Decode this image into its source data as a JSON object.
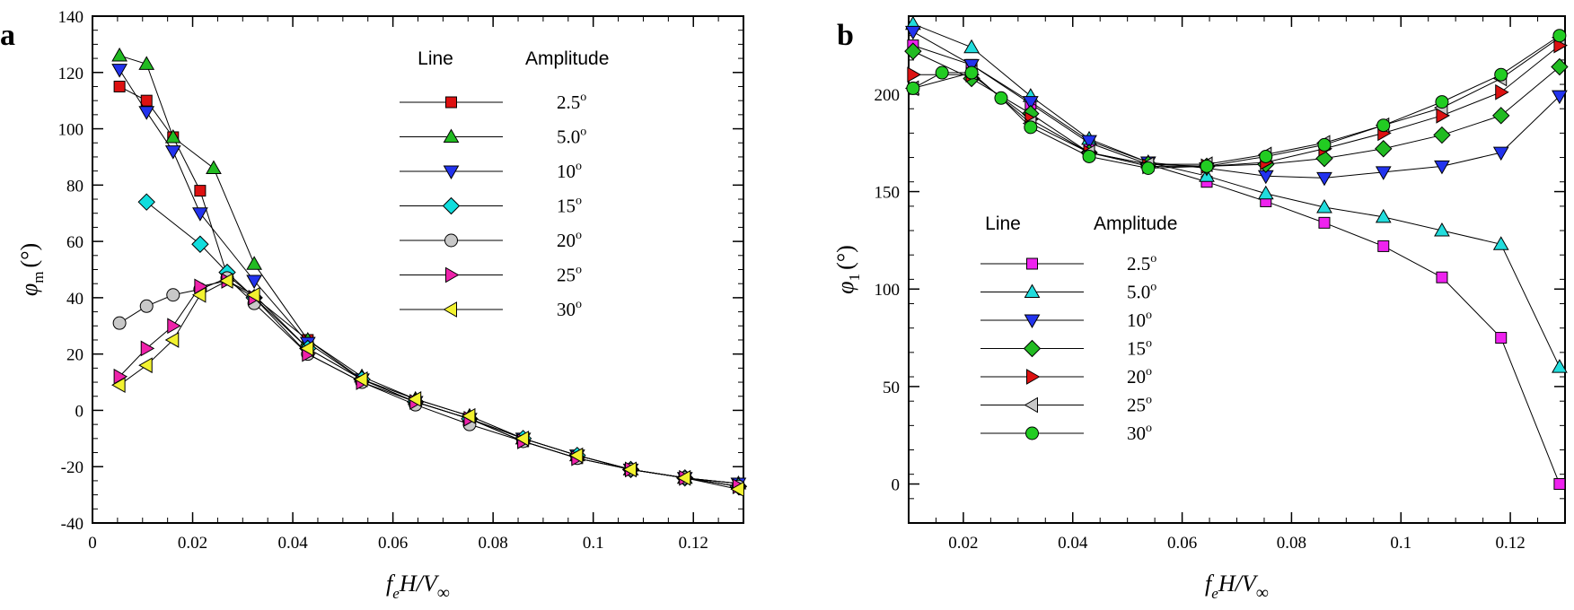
{
  "chart_data": [
    {
      "panel": "a",
      "type": "line",
      "xlabel": "f",
      "xlabel_sub": "e",
      "xlabel_rest": "H/V",
      "xlabel_rest_sub": "∞",
      "ylabel": "φ",
      "ylabel_sub": "m",
      "ylabel_unit": "(°)",
      "xlim": [
        0,
        0.13
      ],
      "ylim": [
        -40,
        140
      ],
      "x_ticks": [
        0,
        0.02,
        0.04,
        0.06,
        0.08,
        0.1,
        0.12
      ],
      "x_tick_labels": [
        "0",
        "0.02",
        "0.04",
        "0.06",
        "0.08",
        "0.1",
        "0.12"
      ],
      "y_ticks": [
        -40,
        -20,
        0,
        20,
        40,
        60,
        80,
        100,
        120,
        140
      ],
      "y_tick_labels": [
        "-40",
        "-20",
        "0",
        "20",
        "40",
        "60",
        "80",
        "100",
        "120",
        "140"
      ],
      "legend_headers": [
        "Line",
        "Amplitude"
      ],
      "series": [
        {
          "name": "2.5",
          "marker": "square",
          "color": "#dd1111",
          "x": [
            0.0054,
            0.0108,
            0.0161,
            0.0215,
            0.0269,
            0.043,
            0.0538,
            0.0645,
            0.0753,
            0.086,
            0.0968,
            0.1075,
            0.1183,
            0.129
          ],
          "y": [
            115,
            110,
            97,
            78,
            48,
            25,
            11,
            3,
            -3,
            -11,
            -17,
            -21,
            -24,
            -26
          ]
        },
        {
          "name": "5.0",
          "marker": "triangle-up",
          "color": "#22bb22",
          "x": [
            0.0054,
            0.0108,
            0.0161,
            0.0242,
            0.0323,
            0.043,
            0.0538,
            0.0645,
            0.0753,
            0.086,
            0.0968,
            0.1075,
            0.1183,
            0.129
          ],
          "y": [
            126,
            123,
            97,
            86,
            52,
            25,
            12,
            4,
            -2,
            -10,
            -16,
            -21,
            -24,
            -26
          ]
        },
        {
          "name": "10",
          "marker": "triangle-down",
          "color": "#2233ee",
          "x": [
            0.0054,
            0.0108,
            0.0161,
            0.0215,
            0.0323,
            0.043,
            0.0538,
            0.0645,
            0.0753,
            0.086,
            0.0968,
            0.1075,
            0.1183,
            0.129
          ],
          "y": [
            121,
            106,
            92,
            70,
            46,
            24,
            11,
            3,
            -3,
            -10,
            -16,
            -21,
            -24,
            -26
          ]
        },
        {
          "name": "15",
          "marker": "diamond",
          "color": "#11dddd",
          "x": [
            0.0108,
            0.0215,
            0.0269,
            0.0323,
            0.043,
            0.0538,
            0.0645,
            0.0753,
            0.086,
            0.0968,
            0.1075,
            0.1183,
            0.129
          ],
          "y": [
            74,
            59,
            49,
            40,
            22,
            11,
            3,
            -3,
            -10,
            -16,
            -21,
            -24,
            -27
          ]
        },
        {
          "name": "20",
          "marker": "circle",
          "color": "#c8c8c8",
          "x": [
            0.0054,
            0.0108,
            0.0161,
            0.0215,
            0.0269,
            0.0323,
            0.043,
            0.0538,
            0.0645,
            0.0753,
            0.086,
            0.0968,
            0.1075,
            0.1183,
            0.129
          ],
          "y": [
            31,
            37,
            41,
            43,
            47,
            38,
            20,
            10,
            2,
            -5,
            -11,
            -17,
            -21,
            -24,
            -27
          ]
        },
        {
          "name": "25",
          "marker": "triangle-right",
          "color": "#ee22aa",
          "x": [
            0.0054,
            0.0108,
            0.0161,
            0.0215,
            0.0269,
            0.0323,
            0.043,
            0.0538,
            0.0645,
            0.0753,
            0.086,
            0.0968,
            0.1075,
            0.1183,
            0.129
          ],
          "y": [
            12,
            22,
            30,
            44,
            46,
            40,
            20,
            10,
            3,
            -3,
            -11,
            -17,
            -21,
            -24,
            -27
          ]
        },
        {
          "name": "30",
          "marker": "triangle-left",
          "color": "#f2f230",
          "x": [
            0.0054,
            0.0108,
            0.0161,
            0.0215,
            0.0269,
            0.0323,
            0.043,
            0.0538,
            0.0645,
            0.0753,
            0.086,
            0.0968,
            0.1075,
            0.1183,
            0.129
          ],
          "y": [
            9,
            16,
            25,
            41,
            46,
            41,
            22,
            11,
            4,
            -2,
            -10,
            -16,
            -21,
            -24,
            -28
          ]
        }
      ]
    },
    {
      "panel": "b",
      "type": "line",
      "xlabel": "f",
      "xlabel_sub": "e",
      "xlabel_rest": "H/V",
      "xlabel_rest_sub": "∞",
      "ylabel": "φ",
      "ylabel_sub": "1",
      "ylabel_unit": "(°)",
      "xlim": [
        0.01,
        0.13
      ],
      "ylim": [
        -20,
        240
      ],
      "x_ticks": [
        0.02,
        0.04,
        0.06,
        0.08,
        0.1,
        0.12
      ],
      "x_tick_labels": [
        "0.02",
        "0.04",
        "0.06",
        "0.08",
        "0.1",
        "0.12"
      ],
      "y_ticks": [
        0,
        50,
        100,
        150,
        200
      ],
      "y_tick_labels": [
        "0",
        "50",
        "100",
        "150",
        "200"
      ],
      "legend_headers": [
        "Line",
        "Amplitude"
      ],
      "series": [
        {
          "name": "2.5",
          "marker": "square",
          "color": "#ee22ee",
          "x": [
            0.0108,
            0.0215,
            0.0323,
            0.043,
            0.0538,
            0.0645,
            0.0753,
            0.086,
            0.0968,
            0.1075,
            0.1183,
            0.129
          ],
          "y": [
            225,
            215,
            195,
            175,
            164,
            155,
            145,
            134,
            122,
            106,
            75,
            0
          ]
        },
        {
          "name": "5.0",
          "marker": "triangle-up",
          "color": "#22dddd",
          "x": [
            0.0108,
            0.0215,
            0.0323,
            0.043,
            0.0538,
            0.0645,
            0.0753,
            0.086,
            0.0968,
            0.1075,
            0.1183,
            0.129
          ],
          "y": [
            236,
            224,
            199,
            177,
            165,
            158,
            149,
            142,
            137,
            130,
            123,
            60
          ]
        },
        {
          "name": "10",
          "marker": "triangle-down",
          "color": "#2233ee",
          "x": [
            0.0108,
            0.0215,
            0.0323,
            0.043,
            0.0538,
            0.0645,
            0.0753,
            0.086,
            0.0968,
            0.1075,
            0.1183,
            0.129
          ],
          "y": [
            232,
            215,
            196,
            176,
            165,
            162,
            158,
            157,
            160,
            163,
            170,
            199
          ]
        },
        {
          "name": "15",
          "marker": "diamond",
          "color": "#22bb22",
          "x": [
            0.0108,
            0.0215,
            0.0323,
            0.043,
            0.0538,
            0.0645,
            0.0753,
            0.086,
            0.0968,
            0.1075,
            0.1183,
            0.129
          ],
          "y": [
            222,
            208,
            190,
            170,
            164,
            163,
            164,
            167,
            172,
            179,
            189,
            214
          ]
        },
        {
          "name": "20",
          "marker": "triangle-right",
          "color": "#dd1111",
          "x": [
            0.0108,
            0.0215,
            0.0323,
            0.043,
            0.0538,
            0.0645,
            0.0753,
            0.086,
            0.0968,
            0.1075,
            0.1183,
            0.129
          ],
          "y": [
            210,
            210,
            187,
            170,
            163,
            163,
            165,
            172,
            180,
            189,
            201,
            225
          ]
        },
        {
          "name": "25",
          "marker": "triangle-left",
          "color": "#c8c8c8",
          "x": [
            0.0108,
            0.0215,
            0.0323,
            0.043,
            0.0538,
            0.0645,
            0.0753,
            0.086,
            0.0968,
            0.1075,
            0.1183,
            0.129
          ],
          "y": [
            203,
            211,
            185,
            170,
            164,
            164,
            169,
            175,
            184,
            193,
            208,
            229
          ]
        },
        {
          "name": "30",
          "marker": "circle",
          "color": "#22cc22",
          "x": [
            0.0108,
            0.0161,
            0.0215,
            0.0269,
            0.0323,
            0.043,
            0.0538,
            0.0645,
            0.0753,
            0.086,
            0.0968,
            0.1075,
            0.1183,
            0.129
          ],
          "y": [
            203,
            211,
            211,
            198,
            183,
            168,
            162,
            163,
            168,
            174,
            184,
            196,
            210,
            230
          ]
        }
      ]
    }
  ]
}
